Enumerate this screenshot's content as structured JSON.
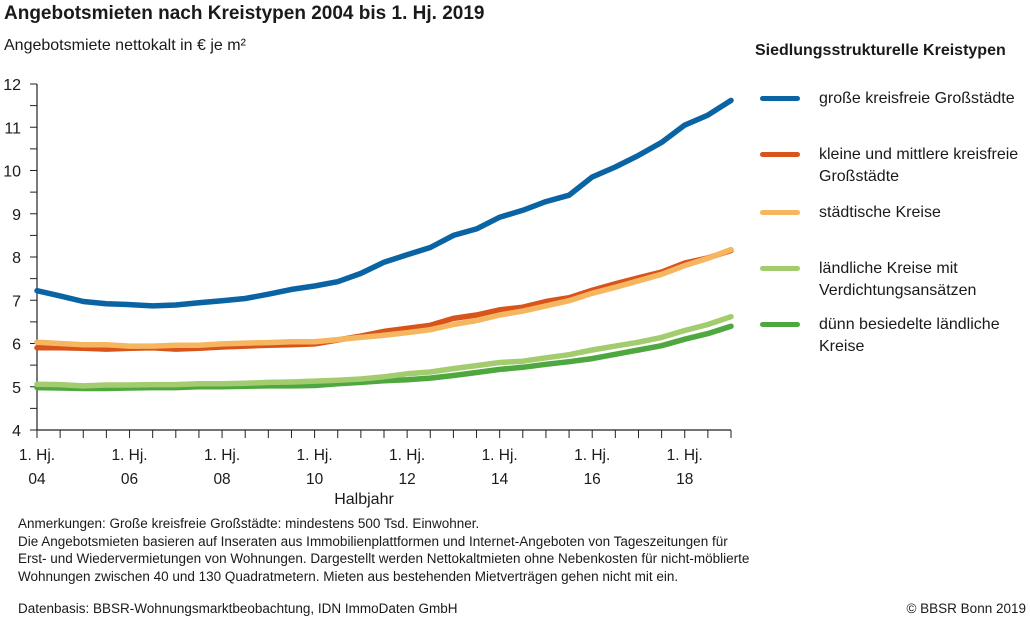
{
  "chart_data": {
    "type": "line",
    "title": "Angebotsmieten nach Kreistypen 2004 bis 1. Hj. 2019",
    "ylabel": "Angebotsmiete nettokalt in € je m²",
    "xlabel": "Halbjahr",
    "ylim": [
      4,
      12
    ],
    "yticks": [
      4,
      5,
      6,
      7,
      8,
      9,
      10,
      11,
      12
    ],
    "yminor_step": 0.5,
    "grid": false,
    "legend_title": "Siedlungsstrukturelle Kreistypen",
    "legend_position": "right",
    "x": [
      "2004 H1",
      "2004 H2",
      "2005 H1",
      "2005 H2",
      "2006 H1",
      "2006 H2",
      "2007 H1",
      "2007 H2",
      "2008 H1",
      "2008 H2",
      "2009 H1",
      "2009 H2",
      "2010 H1",
      "2010 H2",
      "2011 H1",
      "2011 H2",
      "2012 H1",
      "2012 H2",
      "2013 H1",
      "2013 H2",
      "2014 H1",
      "2014 H2",
      "2015 H1",
      "2015 H2",
      "2016 H1",
      "2016 H2",
      "2017 H1",
      "2017 H2",
      "2018 H1",
      "2018 H2",
      "2019 H1"
    ],
    "xtick_labels": [
      {
        "index": 0,
        "line1": "1. Hj.",
        "line2": "04"
      },
      {
        "index": 4,
        "line1": "1. Hj.",
        "line2": "06"
      },
      {
        "index": 8,
        "line1": "1. Hj.",
        "line2": "08"
      },
      {
        "index": 12,
        "line1": "1. Hj.",
        "line2": "10"
      },
      {
        "index": 16,
        "line1": "1. Hj.",
        "line2": "12"
      },
      {
        "index": 20,
        "line1": "1. Hj.",
        "line2": "14"
      },
      {
        "index": 24,
        "line1": "1. Hj.",
        "line2": "16"
      },
      {
        "index": 28,
        "line1": "1. Hj.",
        "line2": "18"
      }
    ],
    "series": [
      {
        "name": "große kreisfreie Großstädte",
        "color": "#0a64a4",
        "values": [
          7.22,
          7.1,
          6.97,
          6.92,
          6.9,
          6.87,
          6.89,
          6.94,
          6.99,
          7.04,
          7.14,
          7.25,
          7.33,
          7.43,
          7.62,
          7.88,
          8.05,
          8.22,
          8.5,
          8.65,
          8.92,
          9.08,
          9.28,
          9.43,
          9.85,
          10.08,
          10.35,
          10.65,
          11.05,
          11.28,
          11.62
        ]
      },
      {
        "name": "kleine und mittlere kreisfreie Großstädte",
        "color": "#d9541a",
        "values": [
          5.9,
          5.9,
          5.89,
          5.87,
          5.89,
          5.9,
          5.87,
          5.89,
          5.92,
          5.94,
          5.96,
          5.97,
          5.99,
          6.08,
          6.17,
          6.28,
          6.35,
          6.42,
          6.58,
          6.66,
          6.78,
          6.84,
          6.97,
          7.06,
          7.23,
          7.38,
          7.52,
          7.65,
          7.86,
          7.98,
          8.15
        ]
      },
      {
        "name": "städtische Kreise",
        "color": "#f6b660",
        "values": [
          6.03,
          6.0,
          5.97,
          5.97,
          5.94,
          5.94,
          5.96,
          5.96,
          5.99,
          6.01,
          6.02,
          6.04,
          6.04,
          6.09,
          6.14,
          6.19,
          6.25,
          6.32,
          6.44,
          6.53,
          6.66,
          6.75,
          6.87,
          6.99,
          7.16,
          7.3,
          7.45,
          7.6,
          7.8,
          7.97,
          8.17
        ]
      },
      {
        "name": "ländliche Kreise mit Verdichtungsansätzen",
        "color": "#a3cc6e",
        "values": [
          5.06,
          5.05,
          5.02,
          5.04,
          5.04,
          5.05,
          5.05,
          5.07,
          5.07,
          5.08,
          5.1,
          5.11,
          5.13,
          5.15,
          5.18,
          5.23,
          5.3,
          5.34,
          5.42,
          5.49,
          5.56,
          5.59,
          5.67,
          5.74,
          5.85,
          5.94,
          6.03,
          6.14,
          6.3,
          6.44,
          6.62
        ]
      },
      {
        "name": "dünn besiedelte ländliche Kreise",
        "color": "#4fa83f",
        "values": [
          4.98,
          4.97,
          4.96,
          4.96,
          4.97,
          4.98,
          4.98,
          5.0,
          5.0,
          5.01,
          5.02,
          5.02,
          5.03,
          5.07,
          5.1,
          5.14,
          5.16,
          5.2,
          5.26,
          5.33,
          5.4,
          5.45,
          5.52,
          5.58,
          5.65,
          5.75,
          5.85,
          5.95,
          6.1,
          6.23,
          6.4
        ]
      }
    ]
  },
  "notes": [
    "Anmerkungen: Große kreisfreie Großstädte: mindestens 500 Tsd. Einwohner.",
    "Die Angebotsmieten basieren auf Inseraten aus Immobilienplattformen und Internet-Angeboten von Tageszeitungen für",
    "Erst- und Wiedervermietungen von Wohnungen. Dargestellt werden Nettokaltmieten ohne Nebenkosten für nicht-möblierte",
    "Wohnungen zwischen 40 und 130 Quadratmetern. Mieten aus bestehenden Mietverträgen gehen nicht mit ein."
  ],
  "source": "Datenbasis: BBSR-Wohnungsmarktbeobachtung, IDN ImmoDaten GmbH",
  "copyright": "© BBSR Bonn 2019",
  "legend_labels": [
    "große kreisfreie Großstädte",
    "kleine und mittlere kreisfreie Großstädte",
    "städtische Kreise",
    "ländliche Kreise mit Verdichtungsansätzen",
    "dünn besiedelte ländliche Kreise"
  ]
}
